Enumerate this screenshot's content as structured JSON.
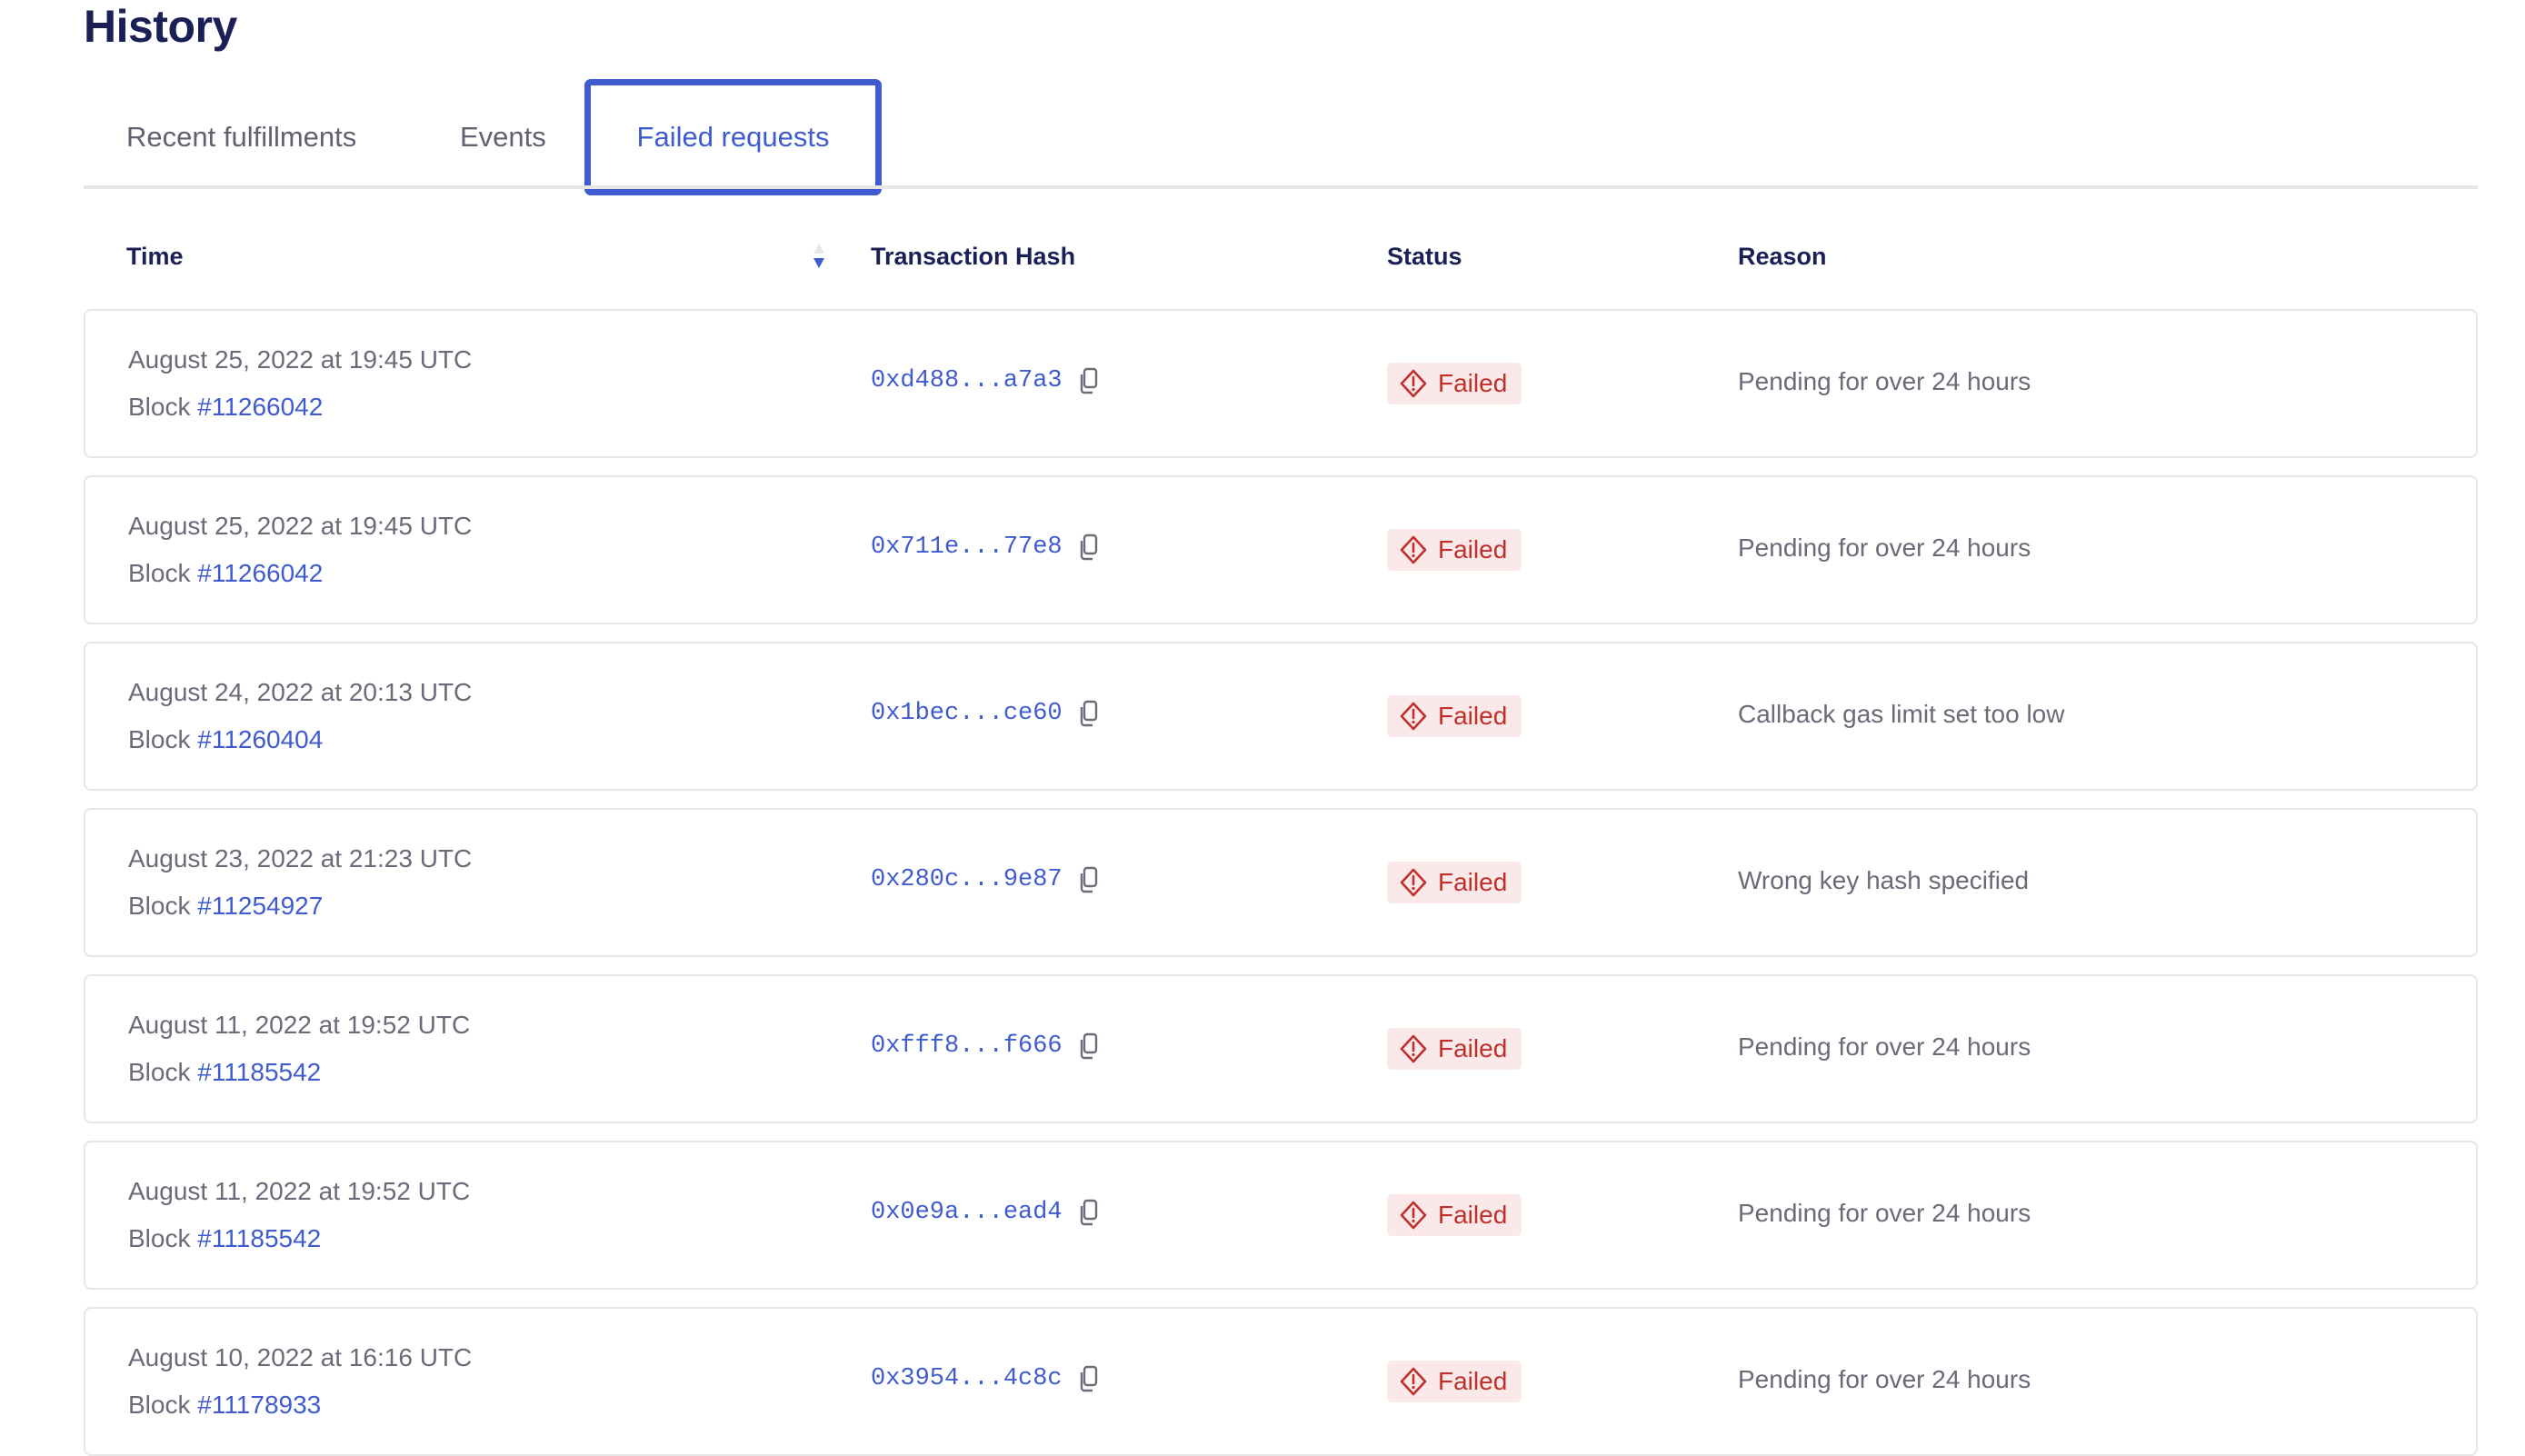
{
  "title": "History",
  "tabs": [
    {
      "label": "Recent fulfillments",
      "active": false
    },
    {
      "label": "Events",
      "active": false
    },
    {
      "label": "Failed requests",
      "active": true
    }
  ],
  "columns": {
    "time": "Time",
    "hash": "Transaction Hash",
    "status": "Status",
    "reason": "Reason"
  },
  "sort": {
    "column": "Time",
    "direction": "descending",
    "icon": "sort-caret-icon"
  },
  "colors": {
    "accent": "#3f5bcf",
    "heading": "#1a2056",
    "failed_text": "#c0302b",
    "failed_bg": "#fbe9e9"
  },
  "block_prefix": "Block",
  "rows": [
    {
      "date": "August 25, 2022 at 19:45 UTC",
      "block": "#11266042",
      "hash": "0xd488...a7a3",
      "status": "Failed",
      "reason": "Pending for over 24 hours"
    },
    {
      "date": "August 25, 2022 at 19:45 UTC",
      "block": "#11266042",
      "hash": "0x711e...77e8",
      "status": "Failed",
      "reason": "Pending for over 24 hours"
    },
    {
      "date": "August 24, 2022 at 20:13 UTC",
      "block": "#11260404",
      "hash": "0x1bec...ce60",
      "status": "Failed",
      "reason": "Callback gas limit set too low"
    },
    {
      "date": "August 23, 2022 at 21:23 UTC",
      "block": "#11254927",
      "hash": "0x280c...9e87",
      "status": "Failed",
      "reason": "Wrong key hash specified"
    },
    {
      "date": "August 11, 2022 at 19:52 UTC",
      "block": "#11185542",
      "hash": "0xfff8...f666",
      "status": "Failed",
      "reason": "Pending for over 24 hours"
    },
    {
      "date": "August 11, 2022 at 19:52 UTC",
      "block": "#11185542",
      "hash": "0x0e9a...ead4",
      "status": "Failed",
      "reason": "Pending for over 24 hours"
    },
    {
      "date": "August 10, 2022 at 16:16 UTC",
      "block": "#11178933",
      "hash": "0x3954...4c8c",
      "status": "Failed",
      "reason": "Pending for over 24 hours"
    }
  ]
}
